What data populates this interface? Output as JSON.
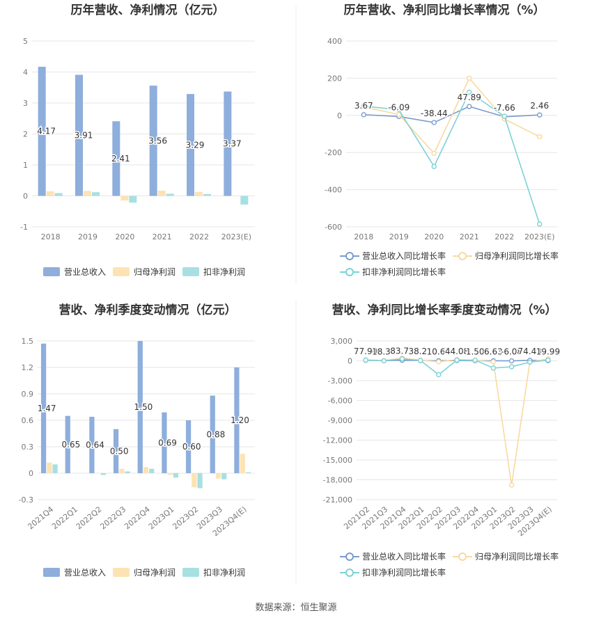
{
  "colors": {
    "revenue": "#8eaedc",
    "net_profit": "#fde3b4",
    "net_profit_ex": "#a8e0e2",
    "revenue_line": "#7a9bd0",
    "net_profit_line": "#f9d9a0",
    "net_profit_ex_line": "#7dd2d6",
    "grid": "#e6e6e6",
    "text": "#333333",
    "axis_text": "#777777"
  },
  "footer": "数据来源：恒生聚源",
  "chart_data": [
    {
      "type": "bar",
      "title": "历年营收、净利情况（亿元）",
      "categories": [
        "2018",
        "2019",
        "2020",
        "2021",
        "2022",
        "2023(E)"
      ],
      "ylim": [
        -1,
        5
      ],
      "yticks": [
        -1,
        0,
        1,
        2,
        3,
        4,
        5
      ],
      "ytick_labels": [
        "-1",
        "0",
        "1",
        "2",
        "3",
        "4",
        "5"
      ],
      "grid": true,
      "legend_position": "bottom",
      "series": [
        {
          "name": "营业总收入",
          "values": [
            4.17,
            3.91,
            2.41,
            3.56,
            3.29,
            3.37
          ],
          "labels": [
            "4.17",
            "3.91",
            "2.41",
            "3.56",
            "3.29",
            "3.37"
          ]
        },
        {
          "name": "归母净利润",
          "values": [
            0.15,
            0.16,
            -0.15,
            0.17,
            0.13,
            0.0
          ]
        },
        {
          "name": "扣非净利润",
          "values": [
            0.09,
            0.12,
            -0.22,
            0.07,
            0.06,
            -0.28
          ]
        }
      ]
    },
    {
      "type": "line",
      "title": "历年营收、净利同比增长率情况（%）",
      "categories": [
        "2018",
        "2019",
        "2020",
        "2021",
        "2022",
        "2023(E)"
      ],
      "ylim": [
        -600,
        400
      ],
      "yticks": [
        -600,
        -400,
        -200,
        0,
        200,
        400
      ],
      "ytick_labels": [
        "-600",
        "-400",
        "-200",
        "0",
        "200",
        "400"
      ],
      "grid": true,
      "legend_position": "bottom",
      "series": [
        {
          "name": "营业总收入同比增长率",
          "values": [
            3.67,
            -6.09,
            -38.44,
            47.89,
            -7.66,
            2.46
          ],
          "labels": [
            "3.67",
            "-6.09",
            "-38.44",
            "47.89",
            "-7.66",
            "2.46"
          ]
        },
        {
          "name": "归母净利润同比增长率",
          "values": [
            45,
            5,
            -205,
            200,
            -20,
            -115
          ]
        },
        {
          "name": "扣非净利润同比增长率",
          "values": [
            50,
            30,
            -275,
            125,
            -5,
            -585
          ]
        }
      ]
    },
    {
      "type": "bar",
      "title": "营收、净利季度变动情况（亿元）",
      "categories": [
        "2021Q4",
        "2022Q1",
        "2022Q2",
        "2022Q3",
        "2022Q4",
        "2023Q1",
        "2023Q2",
        "2023Q3",
        "2023Q4(E)"
      ],
      "ylim": [
        -0.3,
        1.5
      ],
      "yticks": [
        -0.3,
        0,
        0.3,
        0.6,
        0.9,
        1.2,
        1.5
      ],
      "ytick_labels": [
        "-0.3",
        "0",
        "0.3",
        "0.6",
        "0.9",
        "1.2",
        "1.5"
      ],
      "grid": true,
      "legend_position": "bottom",
      "series": [
        {
          "name": "营业总收入",
          "values": [
            1.47,
            0.65,
            0.64,
            0.5,
            1.5,
            0.69,
            0.6,
            0.88,
            1.2
          ],
          "labels": [
            "1.47",
            "0.65",
            "0.64",
            "0.50",
            "1.50",
            "0.69",
            "0.60",
            "0.88",
            "1.20"
          ]
        },
        {
          "name": "归母净利润",
          "values": [
            0.12,
            0.0,
            0.0,
            0.05,
            0.07,
            -0.02,
            -0.16,
            -0.06,
            0.22
          ]
        },
        {
          "name": "扣非净利润",
          "values": [
            0.1,
            0.0,
            -0.02,
            0.02,
            0.05,
            -0.05,
            -0.17,
            -0.07,
            0.01
          ]
        }
      ]
    },
    {
      "type": "line",
      "title": "营收、净利同比增长率季度变动情况（%）",
      "categories": [
        "2021Q2",
        "2021Q3",
        "2021Q4",
        "2022Q1",
        "2022Q2",
        "2022Q3",
        "2022Q4",
        "2023Q1",
        "2023Q2",
        "2023Q3",
        "2023Q4(E)"
      ],
      "ylim": [
        -21000,
        3000
      ],
      "yticks": [
        -21000,
        -18000,
        -15000,
        -12000,
        -9000,
        -6000,
        -3000,
        0,
        3000
      ],
      "ytick_labels": [
        "-21,000",
        "-18,000",
        "-15,000",
        "-12,000",
        "-9,000",
        "-6,000",
        "-3,000",
        "0",
        "3,000"
      ],
      "grid": true,
      "legend_position": "bottom",
      "series": [
        {
          "name": "营业总收入同比增长率",
          "values": [
            77.9,
            18.32,
            83.76,
            38.21,
            10.67,
            44.08,
            1.5,
            6.63,
            -6.08,
            74.43,
            19.99
          ],
          "labels": [
            "77.90",
            "18.32",
            "83.76",
            "38.21",
            "10.67",
            "44.08",
            "1.50",
            "6.63",
            "-6.08",
            "74.43",
            "19.99"
          ]
        },
        {
          "name": "归母净利润同比增长率",
          "values": [
            150,
            50,
            400,
            100,
            -150,
            200,
            50,
            -150,
            -18800,
            -200,
            300
          ]
        },
        {
          "name": "扣非净利润同比增长率",
          "values": [
            100,
            0,
            300,
            50,
            -2100,
            100,
            100,
            -1100,
            -900,
            -200,
            100
          ]
        }
      ]
    }
  ]
}
